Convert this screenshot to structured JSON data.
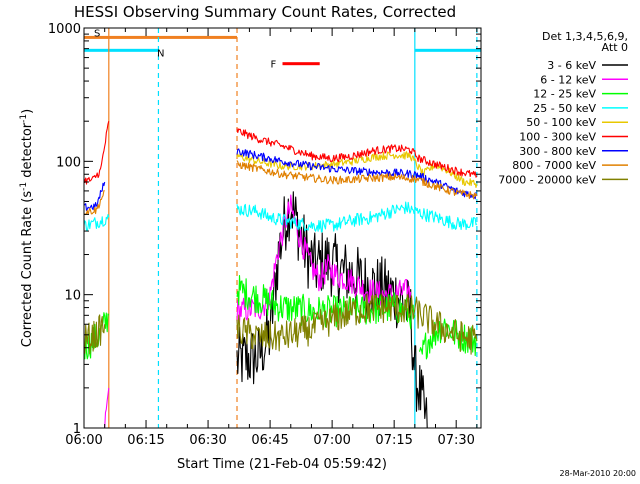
{
  "chart_data": {
    "type": "line",
    "title": "HESSI Observing Summary Count Rates, Corrected",
    "xlabel": "Start Time (21-Feb-04 05:59:42)",
    "ylabel_main": "Corrected Count Rate (s",
    "ylabel_sup1": "-1",
    "ylabel_mid": " detector",
    "ylabel_sup2": "-1",
    "ylabel_end": ")",
    "y_scale": "log",
    "ylim": [
      1,
      1000
    ],
    "xlim": [
      "06:00",
      "07:36"
    ],
    "x_ticks": [
      "06:00",
      "06:15",
      "06:30",
      "06:45",
      "07:00",
      "07:15",
      "07:30"
    ],
    "y_ticks": [
      "1",
      "10",
      "100",
      "1000"
    ],
    "timestamp": "28-Mar-2010 20:00",
    "legend": {
      "header_line1": "Det 1,3,4,5,6,9,",
      "header_line2": "Att 0",
      "placement": "right",
      "entries": [
        {
          "label": "3 - 6 keV",
          "color": "#000000"
        },
        {
          "label": "6 - 12 keV",
          "color": "#ff00ff"
        },
        {
          "label": "12 - 25 keV",
          "color": "#00ff00"
        },
        {
          "label": "25 - 50 keV",
          "color": "#00ffff"
        },
        {
          "label": "50 - 100 keV",
          "color": "#e8c800"
        },
        {
          "label": "100 - 300 keV",
          "color": "#ff0000"
        },
        {
          "label": "300 - 800 keV",
          "color": "#0000ff"
        },
        {
          "label": "800 - 7000 keV",
          "color": "#e08000"
        },
        {
          "label": "7000 - 20000 keV",
          "color": "#808000"
        }
      ]
    },
    "flag_bars": [
      {
        "label": "S",
        "color": "#f08020",
        "start": "06:00",
        "end": "06:37",
        "level": 850
      },
      {
        "label": "N",
        "color": "#00e0ff",
        "start": "06:00",
        "end": "06:18",
        "level": 680
      },
      {
        "label": "N",
        "color": "#00e0ff",
        "start": "07:20",
        "end": "07:36",
        "level": 680
      },
      {
        "label": "F",
        "color": "#ff0000",
        "start": "06:48",
        "end": "06:57",
        "level": 540
      }
    ],
    "boundaries": [
      {
        "time": "06:06",
        "color": "#f08020",
        "style": "solid"
      },
      {
        "time": "06:18",
        "color": "#00e0ff",
        "style": "dashed"
      },
      {
        "time": "06:37",
        "color": "#f08020",
        "style": "dashed"
      },
      {
        "time": "07:20",
        "color": "#00e0ff",
        "style": "solid"
      },
      {
        "time": "07:35",
        "color": "#00e0ff",
        "style": "dashed"
      }
    ],
    "series": [
      {
        "name": "3 - 6 keV",
        "color": "#000000",
        "noise": 0.25,
        "segments": [
          [
            [
              "06:37",
              3.2
            ],
            [
              "06:42",
              3.4
            ],
            [
              "06:45",
              5
            ],
            [
              "06:47",
              20
            ],
            [
              "06:49",
              40
            ],
            [
              "06:50",
              48
            ],
            [
              "06:52",
              30
            ],
            [
              "06:54",
              20
            ],
            [
              "06:56",
              16
            ],
            [
              "06:58",
              18
            ],
            [
              "07:00",
              17
            ],
            [
              "07:02",
              15
            ],
            [
              "07:05",
              14
            ],
            [
              "07:08",
              12
            ],
            [
              "07:12",
              11
            ],
            [
              "07:15",
              10
            ],
            [
              "07:17",
              9
            ],
            [
              "07:18",
              8
            ],
            [
              "07:19",
              7
            ],
            [
              "07:20",
              2.5
            ],
            [
              "07:21",
              2.0
            ],
            [
              "07:22",
              1.4
            ],
            [
              "07:23",
              1.0
            ]
          ]
        ]
      },
      {
        "name": "6 - 12 keV",
        "color": "#ff00ff",
        "noise": 0.1,
        "segments": [
          [
            [
              "06:05",
              1.0
            ],
            [
              "06:06",
              2.0
            ]
          ],
          [
            [
              "06:37",
              7.5
            ],
            [
              "06:43",
              8
            ],
            [
              "06:45",
              10
            ],
            [
              "06:47",
              22
            ],
            [
              "06:49",
              38
            ],
            [
              "06:50",
              45
            ],
            [
              "06:52",
              28
            ],
            [
              "06:55",
              16
            ],
            [
              "06:57",
              13
            ],
            [
              "06:59",
              16
            ],
            [
              "07:01",
              14
            ],
            [
              "07:04",
              13
            ],
            [
              "07:08",
              11
            ],
            [
              "07:12",
              10
            ],
            [
              "07:15",
              10
            ],
            [
              "07:17",
              10.5
            ],
            [
              "07:19",
              10.5
            ]
          ]
        ]
      },
      {
        "name": "12 - 25 keV",
        "color": "#00ff00",
        "noise": 0.12,
        "segments": [
          [
            [
              "06:00",
              4
            ],
            [
              "06:02",
              4.5
            ],
            [
              "06:04",
              5
            ],
            [
              "06:05",
              6
            ],
            [
              "06:06",
              7
            ]
          ],
          [
            [
              "06:37",
              11
            ],
            [
              "06:42",
              9.5
            ],
            [
              "06:48",
              8
            ],
            [
              "06:55",
              7.5
            ],
            [
              "07:05",
              7.5
            ],
            [
              "07:15",
              8
            ],
            [
              "07:20",
              7
            ]
          ],
          [
            [
              "07:21",
              3
            ],
            [
              "07:23",
              4.5
            ],
            [
              "07:27",
              6
            ],
            [
              "07:30",
              5
            ],
            [
              "07:35",
              4.5
            ]
          ]
        ]
      },
      {
        "name": "25 - 50 keV",
        "color": "#00ffff",
        "noise": 0.05,
        "segments": [
          [
            [
              "06:00",
              33
            ],
            [
              "06:02",
              34
            ],
            [
              "06:04",
              36
            ],
            [
              "06:06",
              38
            ]
          ],
          [
            [
              "06:37",
              44
            ],
            [
              "06:42",
              42
            ],
            [
              "06:45",
              38
            ],
            [
              "06:50",
              35
            ],
            [
              "06:55",
              33
            ],
            [
              "07:00",
              33
            ],
            [
              "07:05",
              36
            ],
            [
              "07:10",
              38
            ],
            [
              "07:15",
              43
            ],
            [
              "07:18",
              45
            ],
            [
              "07:20",
              42
            ],
            [
              "07:25",
              38
            ],
            [
              "07:30",
              34
            ],
            [
              "07:35",
              34
            ]
          ]
        ]
      },
      {
        "name": "50 - 100 keV",
        "color": "#e8c800",
        "noise": 0.03,
        "segments": [
          [
            [
              "06:37",
              110
            ],
            [
              "06:42",
              100
            ],
            [
              "06:48",
              92
            ],
            [
              "06:55",
              92
            ],
            [
              "07:00",
              95
            ],
            [
              "07:05",
              100
            ],
            [
              "07:10",
              108
            ],
            [
              "07:15",
              112
            ],
            [
              "07:19",
              110
            ],
            [
              "07:22",
              80
            ],
            [
              "07:25",
              95
            ],
            [
              "07:28",
              85
            ],
            [
              "07:32",
              70
            ],
            [
              "07:35",
              68
            ]
          ]
        ]
      },
      {
        "name": "100 - 300 keV",
        "color": "#ff0000",
        "noise": 0.03,
        "segments": [
          [
            [
              "06:00",
              72
            ],
            [
              "06:02",
              72
            ],
            [
              "06:04",
              85
            ],
            [
              "06:06",
              200
            ]
          ],
          [
            [
              "06:37",
              170
            ],
            [
              "06:42",
              148
            ],
            [
              "06:48",
              130
            ],
            [
              "06:55",
              110
            ],
            [
              "07:00",
              105
            ],
            [
              "07:05",
              110
            ],
            [
              "07:10",
              120
            ],
            [
              "07:15",
              125
            ],
            [
              "07:19",
              122
            ],
            [
              "07:21",
              105
            ],
            [
              "07:25",
              95
            ],
            [
              "07:30",
              85
            ],
            [
              "07:35",
              78
            ]
          ]
        ]
      },
      {
        "name": "300 - 800 keV",
        "color": "#0000ff",
        "noise": 0.03,
        "segments": [
          [
            [
              "06:00",
              45
            ],
            [
              "06:03",
              46
            ],
            [
              "06:05",
              70
            ]
          ],
          [
            [
              "06:37",
              120
            ],
            [
              "06:42",
              110
            ],
            [
              "06:48",
              100
            ],
            [
              "06:55",
              92
            ],
            [
              "07:00",
              88
            ],
            [
              "07:05",
              85
            ],
            [
              "07:10",
              83
            ],
            [
              "07:15",
              82
            ],
            [
              "07:20",
              80
            ],
            [
              "07:25",
              70
            ],
            [
              "07:30",
              60
            ],
            [
              "07:35",
              55
            ]
          ]
        ]
      },
      {
        "name": "800 - 7000 keV",
        "color": "#e08000",
        "noise": 0.03,
        "segments": [
          [
            [
              "06:00",
              42
            ],
            [
              "06:03",
              43
            ],
            [
              "06:05",
              60
            ]
          ],
          [
            [
              "06:37",
              95
            ],
            [
              "06:42",
              88
            ],
            [
              "06:48",
              80
            ],
            [
              "06:55",
              75
            ],
            [
              "07:00",
              72
            ],
            [
              "07:05",
              73
            ],
            [
              "07:10",
              75
            ],
            [
              "07:15",
              76
            ],
            [
              "07:20",
              74
            ],
            [
              "07:25",
              65
            ],
            [
              "07:30",
              58
            ],
            [
              "07:35",
              55
            ]
          ]
        ]
      },
      {
        "name": "7000 - 20000 keV",
        "color": "#808000",
        "noise": 0.12,
        "segments": [
          [
            [
              "06:00",
              4.5
            ],
            [
              "06:03",
              5
            ],
            [
              "06:05",
              6
            ]
          ],
          [
            [
              "06:37",
              5.5
            ],
            [
              "06:42",
              4.8
            ],
            [
              "06:48",
              4.8
            ],
            [
              "06:55",
              5.5
            ],
            [
              "07:00",
              6.5
            ],
            [
              "07:05",
              7.5
            ],
            [
              "07:10",
              8
            ],
            [
              "07:15",
              8
            ],
            [
              "07:20",
              7.5
            ],
            [
              "07:25",
              6
            ],
            [
              "07:30",
              5
            ],
            [
              "07:35",
              4.5
            ]
          ]
        ]
      }
    ]
  }
}
